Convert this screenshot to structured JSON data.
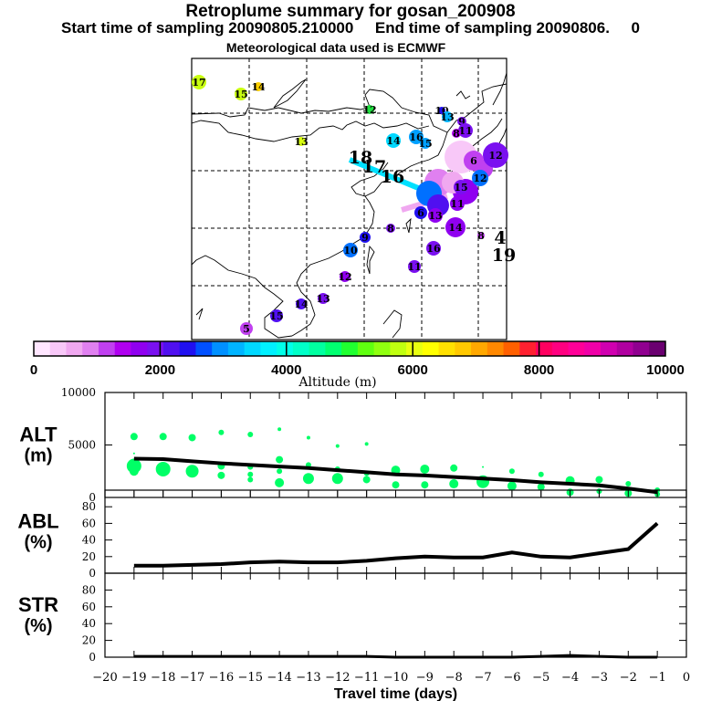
{
  "header": {
    "title": "Retroplume summary for gosan_200908",
    "subtitle": "Start time of sampling 20090805.210000     End time of sampling 20090806.     0",
    "met_note": "Meteorological data used is ECMWF"
  },
  "colorbar": {
    "label": "Altitude (m)",
    "tick_labels": [
      "0",
      "2000",
      "4000",
      "6000",
      "8000",
      "10000"
    ],
    "range": [
      0,
      10000
    ],
    "colors": [
      "#ffe6ff",
      "#f8c8f8",
      "#f0a8f0",
      "#e080f0",
      "#c040f0",
      "#b000f0",
      "#9000f0",
      "#7a10f0",
      "#5010f0",
      "#2010f0",
      "#0050ff",
      "#0090ff",
      "#00b4ff",
      "#00d8ff",
      "#00f0ff",
      "#00ffe8",
      "#00ffc8",
      "#00ffa0",
      "#00ff70",
      "#20ff30",
      "#60ff10",
      "#90ff10",
      "#c0ff10",
      "#e8ff10",
      "#ffff00",
      "#ffe000",
      "#ffc800",
      "#ffa800",
      "#ff8800",
      "#ff6000",
      "#ff2030",
      "#ff0060",
      "#ff0080",
      "#ff0098",
      "#f000a8",
      "#d000b0",
      "#b000a0",
      "#900090",
      "#6a0070"
    ]
  },
  "map": {
    "labels": [
      {
        "t": "17",
        "lon": -1,
        "lat": 0,
        "c": "#c8ff10"
      },
      {
        "t": "15",
        "lon": 0,
        "lat": 0,
        "c": "#c8ff10"
      },
      {
        "t": "14",
        "lon": 0,
        "lat": 0,
        "c": "#ffd000"
      },
      {
        "t": "12",
        "lon": 0,
        "lat": 0,
        "c": "#20e040"
      },
      {
        "t": "13",
        "lon": 0,
        "lat": 0,
        "c": "#d8ff10"
      },
      {
        "t": "14",
        "lon": 0,
        "lat": 0,
        "c": "#00d8ff"
      },
      {
        "t": "16",
        "lon": 0,
        "lat": 0,
        "c": "#00a0ff"
      },
      {
        "t": "15",
        "lon": 0,
        "lat": 0,
        "c": "#00a0ff"
      },
      {
        "t": "10",
        "lon": 0,
        "lat": 0,
        "c": "#2010f0"
      },
      {
        "t": "13",
        "lon": 0,
        "lat": 0,
        "c": "#00b4ff"
      },
      {
        "t": "9",
        "lon": 0,
        "lat": 0,
        "c": "#7a10f0"
      },
      {
        "t": "11",
        "lon": 0,
        "lat": 0,
        "c": "#7a10f0"
      },
      {
        "t": "8",
        "lon": 0,
        "lat": 0,
        "c": "#b000f0"
      },
      {
        "t": "12",
        "lon": 0,
        "lat": 0,
        "c": "#7a10f0"
      },
      {
        "t": "6",
        "lon": 0,
        "lat": 0,
        "c": "#c040f0"
      },
      {
        "t": "12",
        "lon": 0,
        "lat": 0,
        "c": "#0070ff"
      },
      {
        "t": "8",
        "lon": 0,
        "lat": 0,
        "c": "#7a10f0"
      },
      {
        "t": "6",
        "lon": 0,
        "lat": 0,
        "c": "#2010f0"
      },
      {
        "t": "13",
        "lon": 0,
        "lat": 0,
        "c": "#9000f0"
      },
      {
        "t": "11",
        "lon": 0,
        "lat": 0,
        "c": "#9000f0"
      },
      {
        "t": "14",
        "lon": 0,
        "lat": 0,
        "c": "#9000f0"
      },
      {
        "t": "9",
        "lon": 0,
        "lat": 0,
        "c": "#2010f0"
      },
      {
        "t": "10",
        "lon": 0,
        "lat": 0,
        "c": "#0070ff"
      },
      {
        "t": "15",
        "lon": 0,
        "lat": 0,
        "c": "#7a10f0"
      },
      {
        "t": "16",
        "lon": 0,
        "lat": 0,
        "c": "#7a10f0"
      },
      {
        "t": "11",
        "lon": 0,
        "lat": 0,
        "c": "#7a10f0"
      },
      {
        "t": "12",
        "lon": 0,
        "lat": 0,
        "c": "#9000f0"
      },
      {
        "t": "13",
        "lon": 0,
        "lat": 0,
        "c": "#7a10f0"
      },
      {
        "t": "14",
        "lon": 0,
        "lat": 0,
        "c": "#5010f0"
      },
      {
        "t": "15",
        "lon": 0,
        "lat": 0,
        "c": "#5010f0"
      },
      {
        "t": "5",
        "lon": 0,
        "lat": 0,
        "c": "#c040f0"
      },
      {
        "t": "8",
        "lon": 0,
        "lat": 0,
        "c": "#c040f0"
      },
      {
        "t": "4",
        "lon": 0,
        "lat": 0,
        "c": ""
      },
      {
        "t": "19",
        "lon": 0,
        "lat": 0,
        "c": ""
      },
      {
        "t": "18",
        "lon": 0,
        "lat": 0,
        "c": ""
      },
      {
        "t": "17",
        "lon": 0,
        "lat": 0,
        "c": ""
      },
      {
        "t": "16",
        "lon": 0,
        "lat": 0,
        "c": ""
      }
    ]
  },
  "chart_data": [
    {
      "type": "scatter",
      "title": "ALT (m)",
      "panel_label": "ALT",
      "panel_unit": "(m)",
      "ylim": [
        0,
        10000
      ],
      "ytick_labels": [
        "0",
        "5000",
        "10000"
      ],
      "xlim": [
        -20,
        0
      ],
      "mean_line": {
        "x": [
          -19,
          -18,
          -17,
          -16,
          -15,
          -14,
          -13,
          -12,
          -11,
          -10,
          -9,
          -8,
          -7,
          -6,
          -5,
          -4,
          -3,
          -2,
          -1
        ],
        "y": [
          3700,
          3650,
          3450,
          3250,
          3100,
          2950,
          2800,
          2600,
          2400,
          2200,
          2100,
          1950,
          1800,
          1650,
          1450,
          1300,
          1150,
          850,
          500
        ]
      },
      "points": [
        {
          "x": -19,
          "y": 5800,
          "s": 4
        },
        {
          "x": -19,
          "y": 3000,
          "s": 8
        },
        {
          "x": -19,
          "y": 2500,
          "s": 5
        },
        {
          "x": -19,
          "y": 4200,
          "s": 1
        },
        {
          "x": -18,
          "y": 5800,
          "s": 4
        },
        {
          "x": -18,
          "y": 2700,
          "s": 8
        },
        {
          "x": -18,
          "y": 3700,
          "s": 1
        },
        {
          "x": -17,
          "y": 5700,
          "s": 4
        },
        {
          "x": -17,
          "y": 2500,
          "s": 7
        },
        {
          "x": -17,
          "y": 3500,
          "s": 1
        },
        {
          "x": -16,
          "y": 6200,
          "s": 3
        },
        {
          "x": -16,
          "y": 3000,
          "s": 4
        },
        {
          "x": -16,
          "y": 2100,
          "s": 4
        },
        {
          "x": -15,
          "y": 6000,
          "s": 3
        },
        {
          "x": -15,
          "y": 2900,
          "s": 3
        },
        {
          "x": -15,
          "y": 2200,
          "s": 3
        },
        {
          "x": -15,
          "y": 1700,
          "s": 3
        },
        {
          "x": -14,
          "y": 6500,
          "s": 2
        },
        {
          "x": -14,
          "y": 3600,
          "s": 4
        },
        {
          "x": -14,
          "y": 2500,
          "s": 3
        },
        {
          "x": -14,
          "y": 1400,
          "s": 5
        },
        {
          "x": -13,
          "y": 5700,
          "s": 2
        },
        {
          "x": -13,
          "y": 3100,
          "s": 3
        },
        {
          "x": -13,
          "y": 1800,
          "s": 6
        },
        {
          "x": -12,
          "y": 4900,
          "s": 2
        },
        {
          "x": -12,
          "y": 2700,
          "s": 3
        },
        {
          "x": -12,
          "y": 1800,
          "s": 6
        },
        {
          "x": -11,
          "y": 5100,
          "s": 2
        },
        {
          "x": -11,
          "y": 2300,
          "s": 3
        },
        {
          "x": -11,
          "y": 1700,
          "s": 4
        },
        {
          "x": -10,
          "y": 2600,
          "s": 5
        },
        {
          "x": -10,
          "y": 1200,
          "s": 4
        },
        {
          "x": -9,
          "y": 2700,
          "s": 5
        },
        {
          "x": -9,
          "y": 1200,
          "s": 4
        },
        {
          "x": -8,
          "y": 2800,
          "s": 4
        },
        {
          "x": -8,
          "y": 1300,
          "s": 5
        },
        {
          "x": -7,
          "y": 2900,
          "s": 1
        },
        {
          "x": -7,
          "y": 1500,
          "s": 7
        },
        {
          "x": -6,
          "y": 2500,
          "s": 3
        },
        {
          "x": -6,
          "y": 1100,
          "s": 5
        },
        {
          "x": -5,
          "y": 2200,
          "s": 3
        },
        {
          "x": -5,
          "y": 1000,
          "s": 4
        },
        {
          "x": -4,
          "y": 1600,
          "s": 5
        },
        {
          "x": -4,
          "y": 500,
          "s": 4
        },
        {
          "x": -3,
          "y": 1700,
          "s": 4
        },
        {
          "x": -3,
          "y": 600,
          "s": 3
        },
        {
          "x": -2,
          "y": 1300,
          "s": 3
        },
        {
          "x": -2,
          "y": 400,
          "s": 4
        },
        {
          "x": -1,
          "y": 700,
          "s": 3
        },
        {
          "x": -1,
          "y": 300,
          "s": 3
        }
      ],
      "point_color": "#00ff66"
    },
    {
      "type": "line",
      "title": "ABL (%)",
      "panel_label": "ABL",
      "panel_unit": "(%)",
      "ylim": [
        0,
        100
      ],
      "ytick_labels": [
        "0",
        "20",
        "40",
        "60",
        "80"
      ],
      "xlim": [
        -20,
        0
      ],
      "x": [
        -19,
        -18,
        -17,
        -16,
        -15,
        -14,
        -13,
        -12,
        -11,
        -10,
        -9,
        -8,
        -7,
        -6,
        -5,
        -4,
        -3,
        -2,
        -1
      ],
      "y": [
        9,
        9,
        10,
        11,
        13,
        14,
        13,
        13,
        15,
        18,
        20,
        19,
        19,
        25,
        20,
        19,
        24,
        29,
        60
      ]
    },
    {
      "type": "line",
      "title": "STR (%)",
      "panel_label": "STR",
      "panel_unit": "(%)",
      "ylim": [
        0,
        100
      ],
      "ytick_labels": [
        "0",
        "20",
        "40",
        "60",
        "80"
      ],
      "xlim": [
        -20,
        0
      ],
      "x": [
        -19,
        -18,
        -17,
        -16,
        -15,
        -14,
        -13,
        -12,
        -11,
        -10,
        -9,
        -8,
        -7,
        -6,
        -5,
        -4,
        -3,
        -2,
        -1
      ],
      "y": [
        1,
        1,
        1,
        1,
        1,
        1,
        1,
        1,
        1,
        0,
        0,
        0,
        0,
        0,
        1,
        2,
        1,
        0,
        0
      ],
      "xlabel": "Travel time (days)",
      "xtick_labels": [
        "−20",
        "−19",
        "−18",
        "−17",
        "−16",
        "−15",
        "−14",
        "−13",
        "−12",
        "−11",
        "−10",
        "−9",
        "−8",
        "−7",
        "−6",
        "−5",
        "−4",
        "−3",
        "−2",
        "−1",
        "0"
      ]
    }
  ]
}
